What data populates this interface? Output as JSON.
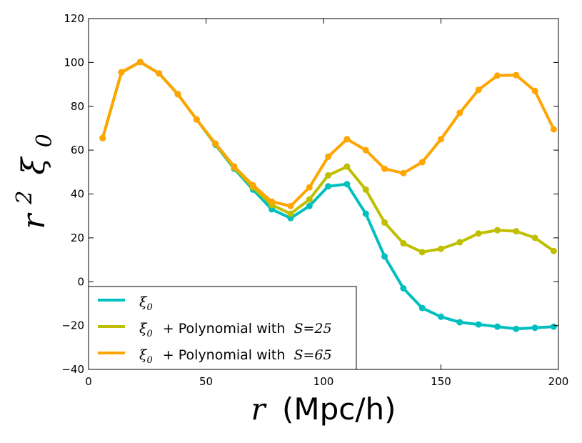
{
  "chart_data": {
    "type": "line",
    "title": "",
    "xlabel_var": "r",
    "xlabel_unit": "(Mpc/h)",
    "ylabel_base": "r",
    "ylabel_exp": "2",
    "ylabel_sym": "ξ",
    "ylabel_sub": "0",
    "xlim": [
      0,
      200
    ],
    "ylim": [
      -40,
      120
    ],
    "x_ticks": [
      0,
      50,
      100,
      150,
      200
    ],
    "y_ticks": [
      -40,
      -20,
      0,
      20,
      40,
      60,
      80,
      100,
      120
    ],
    "x_tick_labels": [
      "0",
      "50",
      "100",
      "150",
      "200"
    ],
    "y_tick_labels": [
      "−40",
      "−20",
      "0",
      "20",
      "40",
      "60",
      "80",
      "100",
      "120"
    ],
    "grid": false,
    "legend_position": "lower-left",
    "x": [
      6,
      14,
      22,
      30,
      38,
      46,
      54,
      62,
      70,
      78,
      86,
      94,
      102,
      110,
      118,
      126,
      134,
      142,
      150,
      158,
      166,
      174,
      182,
      190,
      198
    ],
    "series": [
      {
        "name": "ξ0",
        "legend_sym": "ξ",
        "legend_sub": "0",
        "legend_text": "",
        "legend_math": "",
        "color": "#00bfbf",
        "values": [
          65.5,
          95.5,
          100.2,
          95.0,
          85.5,
          74.0,
          62.5,
          51.5,
          42.0,
          33.0,
          29.0,
          34.5,
          43.5,
          44.5,
          31.0,
          11.5,
          -3.0,
          -12.0,
          -16.0,
          -18.5,
          -19.5,
          -20.5,
          -21.5,
          -21.0,
          -20.5
        ]
      },
      {
        "name": "ξ0 + Polynomial with S=25",
        "legend_sym": "ξ",
        "legend_sub": "0",
        "legend_text": "+ Polynomial with",
        "legend_math": "S=25",
        "color": "#bfbf00",
        "values": [
          65.5,
          95.5,
          100.2,
          95.0,
          85.5,
          74.0,
          62.8,
          52.0,
          43.0,
          35.0,
          31.0,
          37.5,
          48.5,
          52.5,
          42.0,
          27.0,
          17.5,
          13.5,
          15.0,
          18.0,
          22.0,
          23.5,
          23.0,
          20.0,
          14.0
        ]
      },
      {
        "name": "ξ0 + Polynomial with S=65",
        "legend_sym": "ξ",
        "legend_sub": "0",
        "legend_text": "+ Polynomial with",
        "legend_math": "S=65",
        "color": "#ffa500",
        "values": [
          65.5,
          95.5,
          100.2,
          95.0,
          85.5,
          74.0,
          63.0,
          52.5,
          44.0,
          36.5,
          34.5,
          43.0,
          57.0,
          65.0,
          60.0,
          51.5,
          49.5,
          54.5,
          65.0,
          77.0,
          87.5,
          94.0,
          94.2,
          87.0,
          69.5
        ]
      }
    ]
  }
}
